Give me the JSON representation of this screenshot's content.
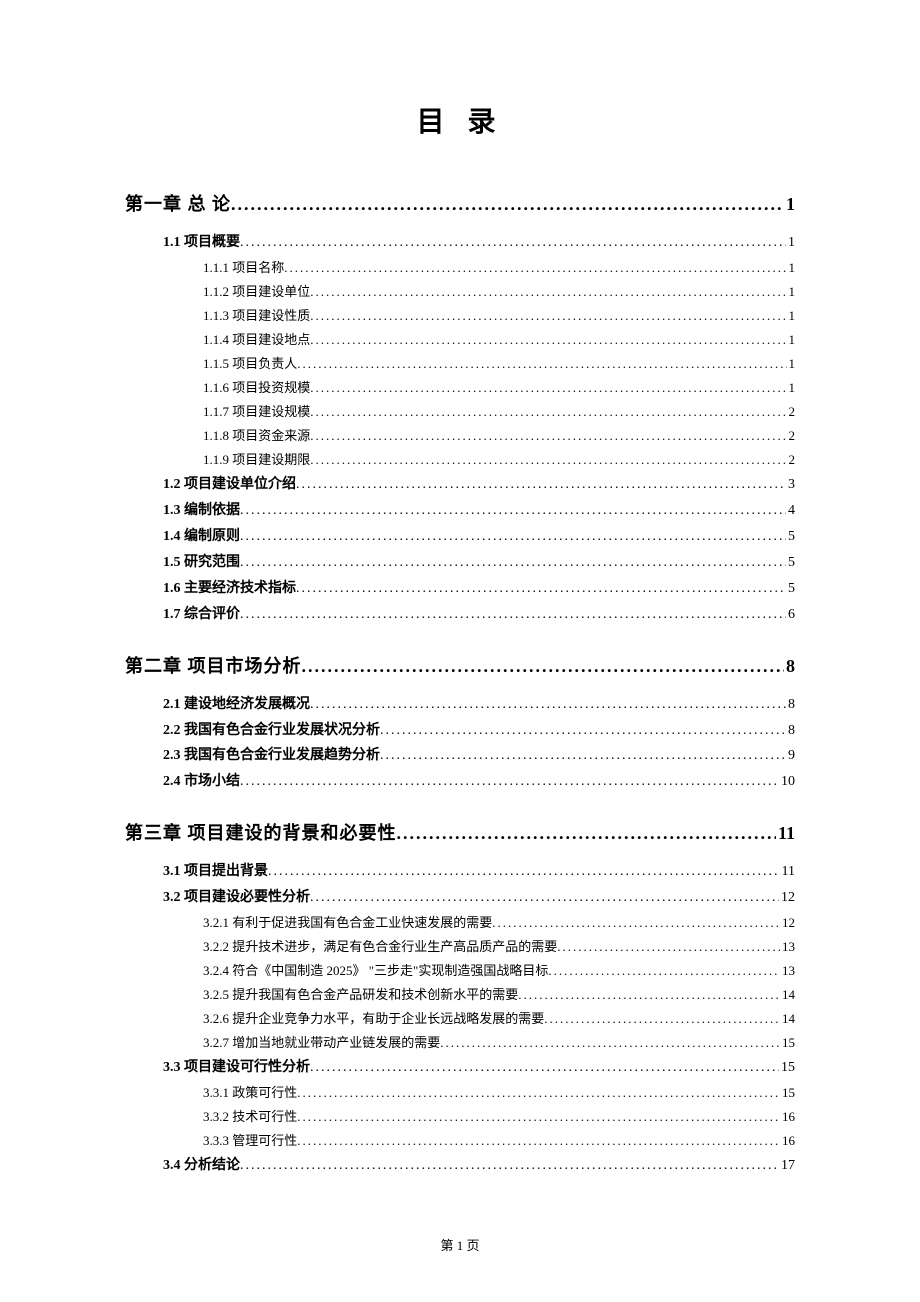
{
  "title": "目 录",
  "footer": "第 1 页",
  "entries": [
    {
      "level": 1,
      "label": "第一章 总 论",
      "page": "1"
    },
    {
      "level": 2,
      "label": "1.1 项目概要",
      "page": "1"
    },
    {
      "level": 3,
      "label": "1.1.1 项目名称",
      "page": "1"
    },
    {
      "level": 3,
      "label": "1.1.2 项目建设单位",
      "page": "1"
    },
    {
      "level": 3,
      "label": "1.1.3 项目建设性质",
      "page": "1"
    },
    {
      "level": 3,
      "label": "1.1.4 项目建设地点",
      "page": "1"
    },
    {
      "level": 3,
      "label": "1.1.5 项目负责人",
      "page": "1"
    },
    {
      "level": 3,
      "label": "1.1.6 项目投资规模",
      "page": "1"
    },
    {
      "level": 3,
      "label": "1.1.7 项目建设规模",
      "page": "2"
    },
    {
      "level": 3,
      "label": "1.1.8 项目资金来源",
      "page": "2"
    },
    {
      "level": 3,
      "label": "1.1.9 项目建设期限",
      "page": "2"
    },
    {
      "level": 2,
      "label": "1.2 项目建设单位介绍",
      "page": "3"
    },
    {
      "level": 2,
      "label": "1.3 编制依据",
      "page": "4"
    },
    {
      "level": 2,
      "label": "1.4 编制原则",
      "page": "5"
    },
    {
      "level": 2,
      "label": "1.5 研究范围",
      "page": "5"
    },
    {
      "level": 2,
      "label": "1.6 主要经济技术指标",
      "page": "5"
    },
    {
      "level": 2,
      "label": "1.7 综合评价",
      "page": "6"
    },
    {
      "level": 1,
      "label": "第二章 项目市场分析",
      "page": "8"
    },
    {
      "level": 2,
      "label": "2.1 建设地经济发展概况",
      "page": "8"
    },
    {
      "level": 2,
      "label": "2.2 我国有色合金行业发展状况分析",
      "page": "8"
    },
    {
      "level": 2,
      "label": "2.3 我国有色合金行业发展趋势分析",
      "page": "9"
    },
    {
      "level": 2,
      "label": "2.4 市场小结",
      "page": "10"
    },
    {
      "level": 1,
      "label": "第三章 项目建设的背景和必要性",
      "page": "11"
    },
    {
      "level": 2,
      "label": "3.1 项目提出背景",
      "page": "11"
    },
    {
      "level": 2,
      "label": "3.2 项目建设必要性分析",
      "page": "12"
    },
    {
      "level": 3,
      "label": "3.2.1 有利于促进我国有色合金工业快速发展的需要",
      "page": "12"
    },
    {
      "level": 3,
      "label": "3.2.2 提升技术进步，满足有色合金行业生产高品质产品的需要",
      "page": "13"
    },
    {
      "level": 3,
      "label": "3.2.4 符合《中国制造 2025》 \"三步走\"实现制造强国战略目标",
      "page": "13"
    },
    {
      "level": 3,
      "label": "3.2.5 提升我国有色合金产品研发和技术创新水平的需要",
      "page": "14"
    },
    {
      "level": 3,
      "label": "3.2.6 提升企业竞争力水平，有助于企业长远战略发展的需要",
      "page": "14"
    },
    {
      "level": 3,
      "label": "3.2.7 增加当地就业带动产业链发展的需要",
      "page": "15"
    },
    {
      "level": 2,
      "label": "3.3 项目建设可行性分析",
      "page": "15"
    },
    {
      "level": 3,
      "label": "3.3.1 政策可行性",
      "page": "15"
    },
    {
      "level": 3,
      "label": "3.3.2 技术可行性",
      "page": "16"
    },
    {
      "level": 3,
      "label": "3.3.3 管理可行性",
      "page": "16"
    },
    {
      "level": 2,
      "label": "3.4 分析结论",
      "page": "17"
    }
  ]
}
